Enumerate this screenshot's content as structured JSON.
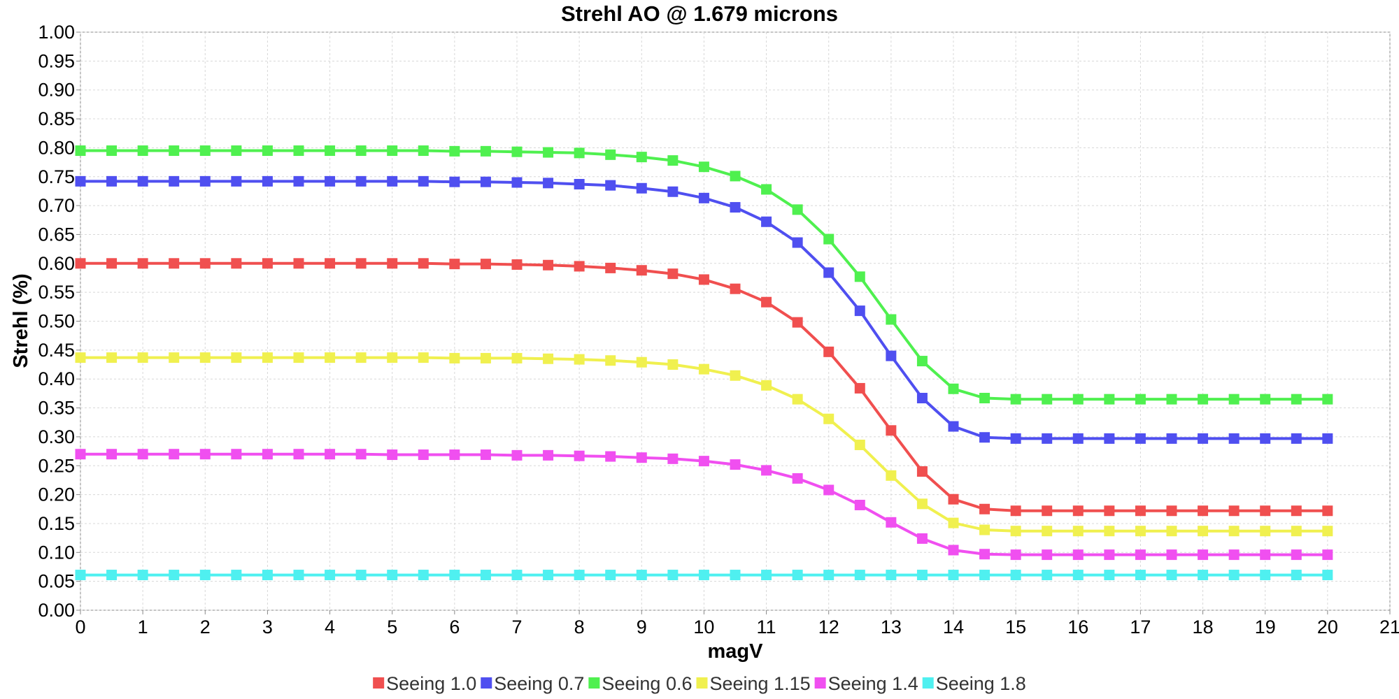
{
  "chart_data": {
    "type": "line",
    "title": "Strehl AO @ 1.679 microns",
    "xlabel": "magV",
    "ylabel": "Strehl (%)",
    "xlim": [
      0,
      21
    ],
    "ylim": [
      0,
      1
    ],
    "xticks": [
      "0",
      "1",
      "2",
      "3",
      "4",
      "5",
      "6",
      "7",
      "8",
      "9",
      "10",
      "11",
      "12",
      "13",
      "14",
      "15",
      "16",
      "17",
      "18",
      "19",
      "20",
      "21"
    ],
    "yticks": [
      "0.00",
      "0.05",
      "0.10",
      "0.15",
      "0.20",
      "0.25",
      "0.30",
      "0.35",
      "0.40",
      "0.45",
      "0.50",
      "0.55",
      "0.60",
      "0.65",
      "0.70",
      "0.75",
      "0.80",
      "0.85",
      "0.90",
      "0.95",
      "1.00"
    ],
    "grid": true,
    "legend_position": "bottom",
    "x": [
      0,
      0.5,
      1,
      1.5,
      2,
      2.5,
      3,
      3.5,
      4,
      4.5,
      5,
      5.5,
      6,
      6.5,
      7,
      7.5,
      8,
      8.5,
      9,
      9.5,
      10,
      10.5,
      11,
      11.5,
      12,
      12.5,
      13,
      13.5,
      14,
      14.5,
      15,
      15.5,
      16,
      16.5,
      17,
      17.5,
      18,
      18.5,
      19,
      19.5,
      20
    ],
    "series": [
      {
        "name": "Seeing 1.0",
        "color": "#f04f4f",
        "values": [
          0.6,
          0.6,
          0.6,
          0.6,
          0.6,
          0.6,
          0.6,
          0.6,
          0.6,
          0.6,
          0.6,
          0.6,
          0.599,
          0.599,
          0.598,
          0.597,
          0.595,
          0.592,
          0.588,
          0.582,
          0.572,
          0.556,
          0.533,
          0.498,
          0.447,
          0.384,
          0.311,
          0.24,
          0.192,
          0.175,
          0.172,
          0.172,
          0.172,
          0.172,
          0.172,
          0.172,
          0.172,
          0.172,
          0.172,
          0.172,
          0.172
        ]
      },
      {
        "name": "Seeing 0.7",
        "color": "#4f4ff0",
        "values": [
          0.742,
          0.742,
          0.742,
          0.742,
          0.742,
          0.742,
          0.742,
          0.742,
          0.742,
          0.742,
          0.742,
          0.742,
          0.741,
          0.741,
          0.74,
          0.739,
          0.737,
          0.735,
          0.73,
          0.724,
          0.713,
          0.697,
          0.672,
          0.636,
          0.584,
          0.518,
          0.44,
          0.367,
          0.318,
          0.299,
          0.297,
          0.297,
          0.297,
          0.297,
          0.297,
          0.297,
          0.297,
          0.297,
          0.297,
          0.297,
          0.297
        ]
      },
      {
        "name": "Seeing 0.6",
        "color": "#4ff04f",
        "values": [
          0.795,
          0.795,
          0.795,
          0.795,
          0.795,
          0.795,
          0.795,
          0.795,
          0.795,
          0.795,
          0.795,
          0.795,
          0.794,
          0.794,
          0.793,
          0.792,
          0.791,
          0.788,
          0.784,
          0.778,
          0.767,
          0.751,
          0.728,
          0.693,
          0.642,
          0.577,
          0.503,
          0.431,
          0.383,
          0.367,
          0.365,
          0.365,
          0.365,
          0.365,
          0.365,
          0.365,
          0.365,
          0.365,
          0.365,
          0.365,
          0.365
        ]
      },
      {
        "name": "Seeing 1.15",
        "color": "#f0f04f",
        "values": [
          0.437,
          0.437,
          0.437,
          0.437,
          0.437,
          0.437,
          0.437,
          0.437,
          0.437,
          0.437,
          0.437,
          0.437,
          0.436,
          0.436,
          0.436,
          0.435,
          0.434,
          0.432,
          0.429,
          0.425,
          0.417,
          0.406,
          0.389,
          0.365,
          0.331,
          0.286,
          0.233,
          0.184,
          0.151,
          0.139,
          0.137,
          0.137,
          0.137,
          0.137,
          0.137,
          0.137,
          0.137,
          0.137,
          0.137,
          0.137,
          0.137
        ]
      },
      {
        "name": "Seeing 1.4",
        "color": "#f04ff0",
        "values": [
          0.27,
          0.27,
          0.27,
          0.27,
          0.27,
          0.27,
          0.27,
          0.27,
          0.27,
          0.27,
          0.269,
          0.269,
          0.269,
          0.269,
          0.268,
          0.268,
          0.267,
          0.266,
          0.264,
          0.262,
          0.258,
          0.252,
          0.242,
          0.228,
          0.208,
          0.182,
          0.152,
          0.124,
          0.104,
          0.097,
          0.096,
          0.096,
          0.096,
          0.096,
          0.096,
          0.096,
          0.096,
          0.096,
          0.096,
          0.096,
          0.096
        ]
      },
      {
        "name": "Seeing 1.8",
        "color": "#4ff0f0",
        "values": [
          0.061,
          0.061,
          0.061,
          0.061,
          0.061,
          0.061,
          0.061,
          0.061,
          0.061,
          0.061,
          0.061,
          0.061,
          0.061,
          0.061,
          0.061,
          0.061,
          0.061,
          0.061,
          0.061,
          0.061,
          0.061,
          0.061,
          0.061,
          0.061,
          0.061,
          0.061,
          0.061,
          0.061,
          0.061,
          0.061,
          0.061,
          0.061,
          0.061,
          0.061,
          0.061,
          0.061,
          0.061,
          0.061,
          0.061,
          0.061,
          0.061
        ]
      }
    ]
  }
}
